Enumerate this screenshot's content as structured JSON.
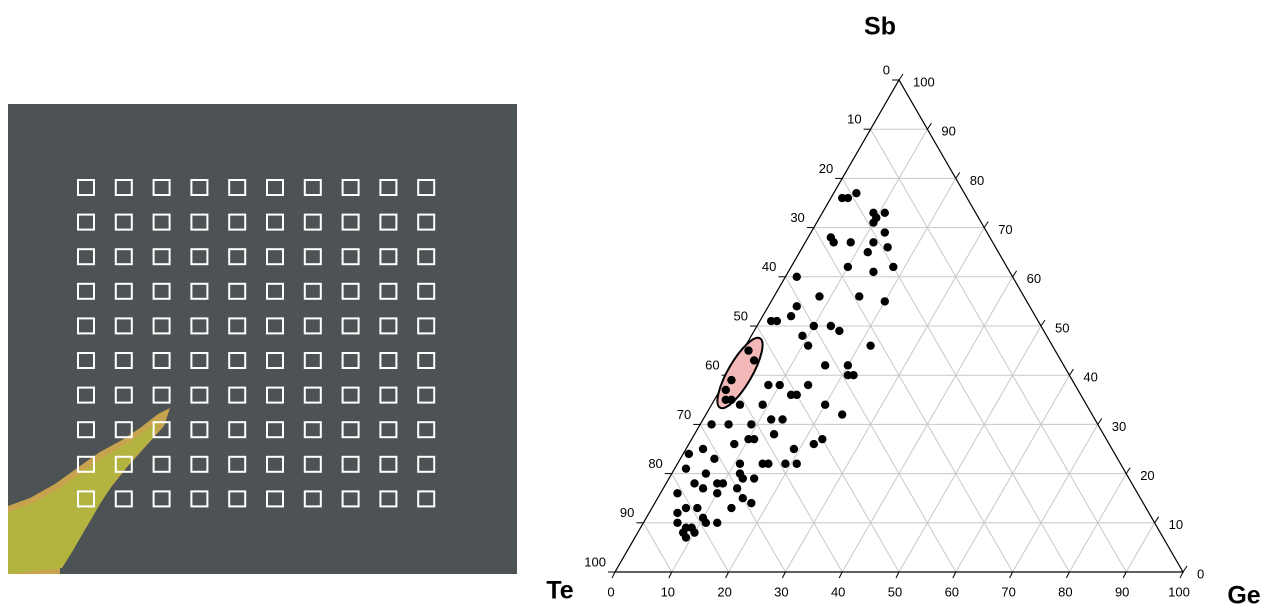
{
  "chart_data": {
    "type": "ternary",
    "corners": {
      "top": "Sb",
      "left": "Te",
      "right": "Ge"
    },
    "lim": [
      0,
      100
    ],
    "ge_ticks": [
      0,
      10,
      20,
      30,
      40,
      50,
      60,
      70,
      80,
      90,
      100
    ],
    "sb_ticks": [
      0,
      10,
      20,
      30,
      40,
      50,
      60,
      70,
      80,
      90,
      100
    ],
    "te_ticks": [
      0,
      10,
      20,
      30,
      40,
      50,
      60,
      70,
      80,
      90,
      100
    ],
    "grid": true,
    "highlight_color": "#f4b8b8",
    "points": {
      "color": "#000000",
      "sb": [
        77,
        76,
        76,
        73,
        73,
        72,
        71,
        69,
        68,
        67,
        67,
        67,
        66,
        65,
        62,
        61,
        62,
        60,
        56,
        56,
        55,
        54,
        51,
        51,
        52,
        50,
        50,
        49,
        48,
        46,
        46,
        42,
        42,
        45,
        43,
        39,
        37,
        35,
        35,
        40,
        40,
        38,
        38,
        38,
        36,
        36,
        34,
        34,
        34,
        31,
        31,
        32,
        30,
        30,
        30,
        28,
        27,
        26,
        27,
        26,
        27,
        25,
        25,
        24,
        23,
        22,
        22,
        22,
        20,
        22,
        22,
        21,
        20,
        18,
        18,
        19,
        18,
        19,
        16,
        17,
        17,
        16,
        15,
        14,
        13,
        13,
        13,
        12,
        10,
        9,
        11,
        10,
        10,
        8,
        7,
        8,
        9
      ],
      "ge": [
        4,
        3,
        2,
        9,
        11,
        10,
        10,
        13,
        4,
        5,
        8,
        12,
        15,
        12,
        10,
        15,
        18,
        2,
        8,
        15,
        20,
        5,
        3,
        2,
        5,
        13,
        10,
        15,
        9,
        11,
        22,
        16,
        20,
        1,
        3,
        1,
        1,
        2,
        3,
        21,
        22,
        8,
        10,
        15,
        14,
        13,
        9,
        5,
        20,
        12,
        14,
        24,
        2,
        5,
        9,
        14,
        11,
        8,
        10,
        22,
        23,
        3,
        19,
        1,
        6,
        11,
        15,
        21,
        12,
        16,
        19,
        2,
        6,
        9,
        5,
        13,
        10,
        15,
        3,
        13,
        7,
        10,
        15,
        17,
        14,
        8,
        6,
        5,
        6,
        8,
        10,
        13,
        11,
        8,
        9,
        10,
        9
      ]
    }
  }
}
